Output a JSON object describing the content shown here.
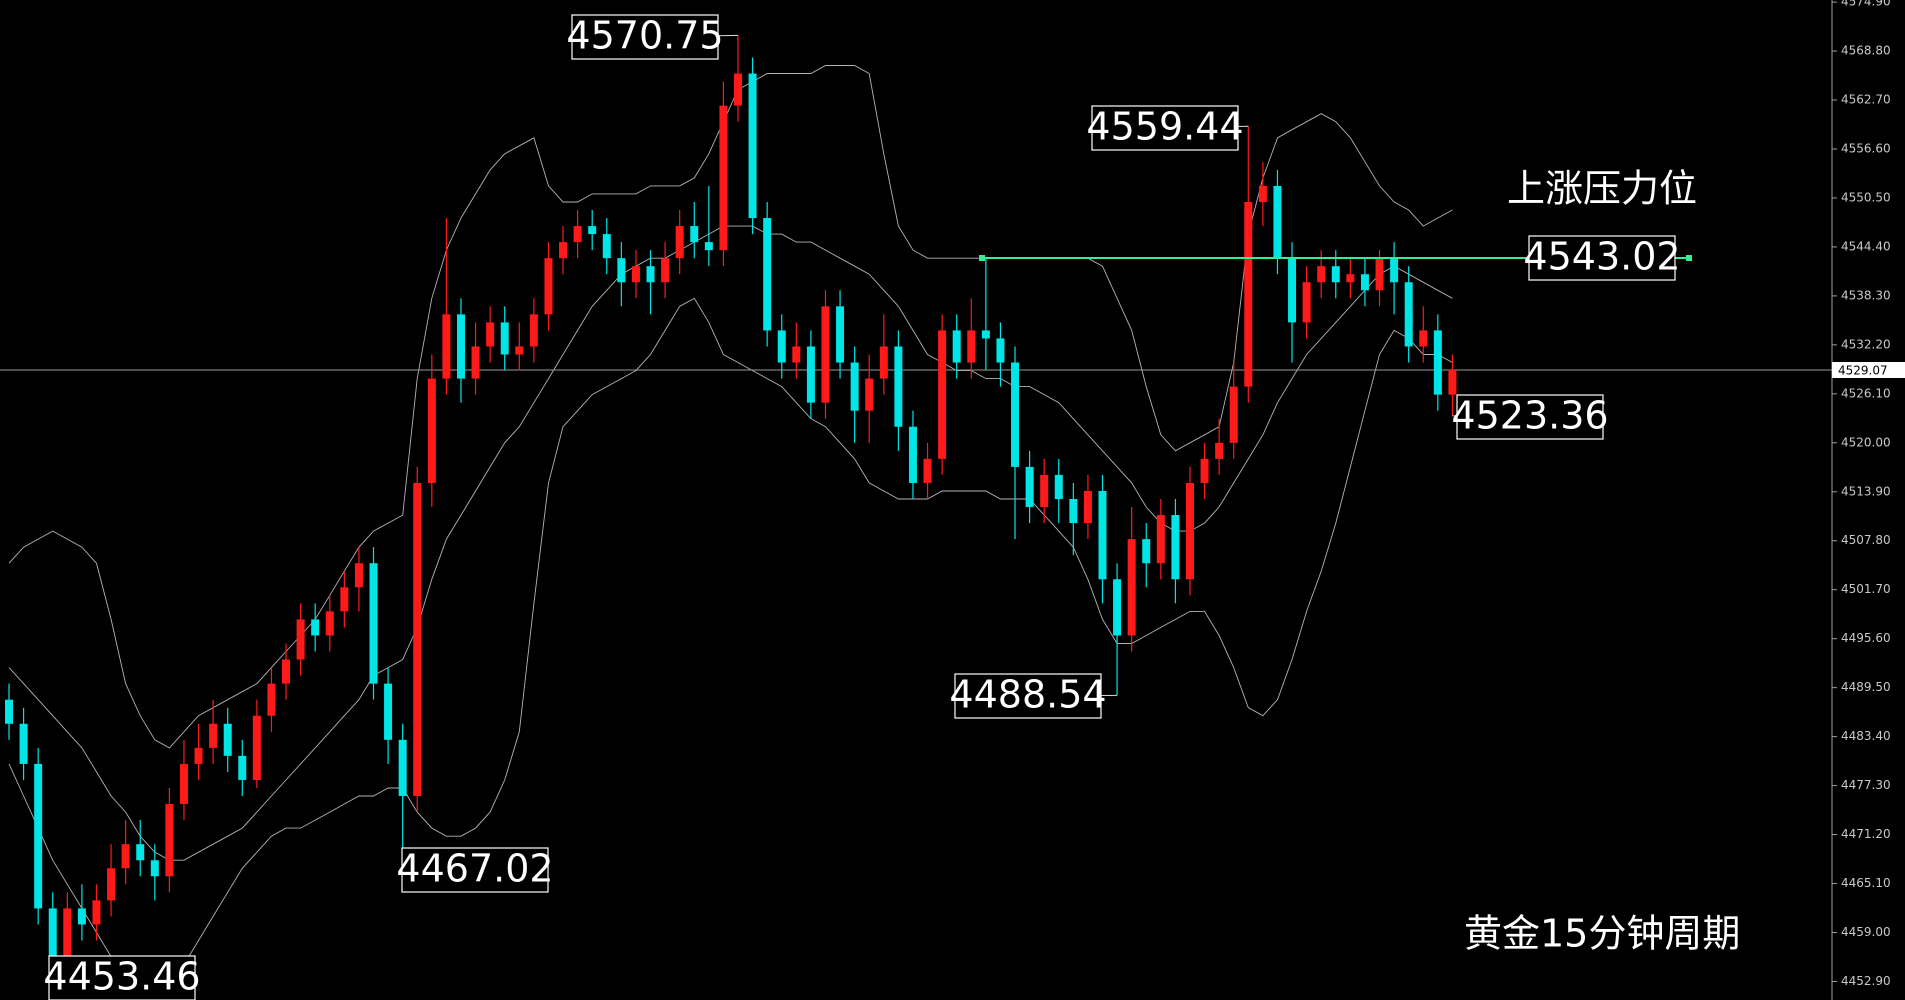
{
  "chart_data": {
    "type": "candlestick",
    "up_color": "#ff1a1a",
    "down_color": "#00e5e5",
    "ylim": [
      4450.59,
      4575.16
    ],
    "yticks": [
      {
        "value": 4574.9,
        "label": "4574.90"
      },
      {
        "value": 4568.8,
        "label": "4568.80"
      },
      {
        "value": 4562.7,
        "label": "4562.70"
      },
      {
        "value": 4556.6,
        "label": "4556.60"
      },
      {
        "value": 4550.5,
        "label": "4550.50"
      },
      {
        "value": 4544.4,
        "label": "4544.40"
      },
      {
        "value": 4538.3,
        "label": "4538.30"
      },
      {
        "value": 4532.2,
        "label": "4532.20"
      },
      {
        "value": 4526.1,
        "label": "4526.10"
      },
      {
        "value": 4520,
        "label": "4520.00"
      },
      {
        "value": 4513.9,
        "label": "4513.90"
      },
      {
        "value": 4507.8,
        "label": "4507.80"
      },
      {
        "value": 4501.7,
        "label": "4501.70"
      },
      {
        "value": 4495.6,
        "label": "4495.60"
      },
      {
        "value": 4489.5,
        "label": "4489.50"
      },
      {
        "value": 4483.4,
        "label": "4483.40"
      },
      {
        "value": 4477.3,
        "label": "4477.30"
      },
      {
        "value": 4471.2,
        "label": "4471.20"
      },
      {
        "value": 4465.1,
        "label": "4465.10"
      },
      {
        "value": 4459,
        "label": "4459.00"
      },
      {
        "value": 4452.9,
        "label": "4452.90"
      }
    ],
    "open": [
      4488,
      4485,
      4480,
      4462,
      4456,
      4462,
      4460,
      4463,
      4467,
      4470,
      4468,
      4466,
      4475,
      4480,
      4482,
      4485,
      4481,
      4478,
      4486,
      4490,
      4493,
      4498,
      4496,
      4499,
      4502,
      4505,
      4490,
      4483,
      4476,
      4515,
      4528,
      4536,
      4528,
      4532,
      4535,
      4531,
      4532,
      4536,
      4543,
      4545,
      4547,
      4546,
      4543,
      4540,
      4542,
      4540,
      4543,
      4547,
      4545,
      4544,
      4562,
      4566,
      4548,
      4534,
      4530,
      4532,
      4525,
      4537,
      4530,
      4524,
      4528,
      4532,
      4522,
      4515,
      4518,
      4534,
      4530,
      4534,
      4533,
      4530,
      4517,
      4512,
      4516,
      4513,
      4510,
      4514,
      4503,
      4496,
      4508,
      4505,
      4511,
      4503,
      4515,
      4518,
      4520,
      4527,
      4550,
      4552,
      4543,
      4535,
      4540,
      4542,
      4540,
      4541,
      4539,
      4543,
      4540,
      4532,
      4534,
      4526
    ],
    "high": [
      4490,
      4487,
      4482,
      4464,
      4464,
      4465,
      4465,
      4470,
      4473,
      4473,
      4470,
      4477,
      4483,
      4485,
      4488,
      4487,
      4483,
      4488,
      4492,
      4495,
      4500,
      4500,
      4501,
      4504,
      4507,
      4507,
      4492,
      4485,
      4517,
      4531,
      4548,
      4538,
      4535,
      4537,
      4537,
      4535,
      4538,
      4545,
      4547,
      4549,
      4549,
      4548,
      4545,
      4544,
      4544,
      4545,
      4549,
      4550,
      4552,
      4565,
      4570.75,
      4568,
      4550,
      4536,
      4535,
      4534,
      4539,
      4539,
      4532,
      4531,
      4536,
      4534,
      4524,
      4520,
      4536,
      4536,
      4538,
      4543,
      4535,
      4532,
      4519,
      4518,
      4518,
      4515,
      4516,
      4516,
      4505,
      4512,
      4510,
      4513,
      4513,
      4517,
      4520,
      4523,
      4530,
      4559.44,
      4555,
      4554,
      4545,
      4542,
      4544,
      4544,
      4543,
      4543,
      4544,
      4545,
      4542,
      4537,
      4536,
      4531
    ],
    "low": [
      4483,
      4478,
      4460,
      4453.46,
      4454,
      4458,
      4458,
      4461,
      4465,
      4466,
      4463,
      4464,
      4473,
      4478,
      4480,
      4479,
      4476,
      4477,
      4484,
      4488,
      4491,
      4494,
      4494,
      4497,
      4499,
      4488,
      4480,
      4467.02,
      4474,
      4512,
      4526,
      4525,
      4526,
      4530,
      4529,
      4529,
      4530,
      4534,
      4541,
      4543,
      4544,
      4541,
      4537,
      4538,
      4536,
      4538,
      4541,
      4543,
      4542,
      4542,
      4560,
      4546,
      4532,
      4528,
      4528,
      4523,
      4523,
      4528,
      4520,
      4520,
      4526,
      4519,
      4513,
      4513,
      4516,
      4528,
      4528,
      4529,
      4527,
      4508,
      4510,
      4510,
      4510,
      4506,
      4508,
      4500,
      4488.54,
      4494,
      4502,
      4503,
      4500,
      4501,
      4513,
      4516,
      4518,
      4525,
      4547,
      4541,
      4530,
      4533,
      4538,
      4538,
      4538,
      4537,
      4537,
      4536,
      4530,
      4530,
      4524,
      4523.36
    ],
    "close": [
      4485,
      4480,
      4462,
      4456,
      4462,
      4460,
      4463,
      4467,
      4470,
      4468,
      4466,
      4475,
      4480,
      4482,
      4485,
      4481,
      4478,
      4486,
      4490,
      4493,
      4498,
      4496,
      4499,
      4502,
      4505,
      4490,
      4483,
      4476,
      4515,
      4528,
      4536,
      4528,
      4532,
      4535,
      4531,
      4532,
      4536,
      4543,
      4545,
      4547,
      4546,
      4543,
      4540,
      4542,
      4540,
      4543,
      4547,
      4545,
      4544,
      4562,
      4566,
      4548,
      4534,
      4530,
      4532,
      4525,
      4537,
      4530,
      4524,
      4528,
      4532,
      4522,
      4515,
      4518,
      4534,
      4530,
      4534,
      4533,
      4530,
      4517,
      4512,
      4516,
      4513,
      4510,
      4514,
      4503,
      4496,
      4508,
      4505,
      4511,
      4503,
      4515,
      4518,
      4520,
      4527,
      4550,
      4552,
      4543,
      4535,
      4540,
      4542,
      4540,
      4541,
      4539,
      4543,
      4540,
      4532,
      4534,
      4526,
      4529.07
    ],
    "lines": [
      {
        "color": "#b4b4b4",
        "values": [
          4505,
          4507,
          4508,
          4509,
          4508,
          4507,
          4505,
          4498,
          4490,
          4486,
          4483,
          4482,
          4484,
          4486,
          4487,
          4488,
          4489,
          4490,
          4492,
          4494,
          4496,
          4498,
          4501,
          4504,
          4507,
          4509,
          4510,
          4511,
          4528,
          4538,
          4544,
          4548,
          4551,
          4554,
          4556,
          4557,
          4558,
          4552,
          4550,
          4550,
          4551,
          4551,
          4551,
          4551,
          4552,
          4552,
          4552,
          4553,
          4556,
          4560,
          4564,
          4565,
          4566,
          4566,
          4566,
          4566,
          4567,
          4567,
          4567,
          4566,
          4556,
          4547,
          4544,
          4543,
          4543,
          4543,
          4543,
          4543,
          4543,
          4543,
          4543,
          4543,
          4543,
          4543,
          4543,
          4542,
          4538,
          4534,
          4527,
          4521,
          4519,
          4520,
          4521,
          4522,
          4530,
          4546,
          4553,
          4558,
          4559,
          4560,
          4561,
          4560,
          4558,
          4555,
          4552,
          4550,
          4549,
          4547,
          4548,
          4549
        ]
      },
      {
        "color": "#b4b4b4",
        "values": [
          4492,
          4490,
          4488,
          4486,
          4484,
          4482,
          4479,
          4476,
          4474,
          4471,
          4469,
          4468,
          4468,
          4469,
          4470,
          4471,
          4472,
          4474,
          4476,
          4478,
          4480,
          4482,
          4484,
          4486,
          4488,
          4491,
          4492,
          4493,
          4497,
          4503,
          4508,
          4511,
          4514,
          4517,
          4520,
          4522,
          4525,
          4528,
          4531,
          4534,
          4537,
          4539,
          4541,
          4542,
          4543,
          4543,
          4544,
          4545,
          4546,
          4547,
          4547,
          4547,
          4546,
          4546,
          4545,
          4545,
          4544,
          4543,
          4542,
          4541,
          4539,
          4537,
          4534,
          4531,
          4530,
          4529,
          4529,
          4528,
          4528,
          4527,
          4527,
          4526,
          4525,
          4523,
          4521,
          4519,
          4517,
          4515,
          4512,
          4510,
          4509,
          4509,
          4510,
          4512,
          4515,
          4518,
          4521,
          4525,
          4528,
          4531,
          4533,
          4535,
          4537,
          4539,
          4541,
          4542,
          4541,
          4540,
          4539,
          4538
        ]
      },
      {
        "color": "#b4b4b4",
        "values": [
          4480,
          4476,
          4472,
          4468,
          4465,
          4462,
          4459,
          4456,
          4453,
          4451,
          4451,
          4453,
          4455,
          4458,
          4461,
          4464,
          4467,
          4469,
          4471,
          4472,
          4472,
          4473,
          4474,
          4475,
          4476,
          4476,
          4477,
          4477,
          4474,
          4472,
          4471,
          4471,
          4472,
          4474,
          4478,
          4484,
          4500,
          4515,
          4522,
          4524,
          4526,
          4527,
          4528,
          4529,
          4531,
          4534,
          4537,
          4538,
          4535,
          4531,
          4530,
          4529,
          4528,
          4527,
          4525,
          4523,
          4522,
          4520,
          4518,
          4515,
          4514,
          4513,
          4513,
          4513,
          4514,
          4514,
          4514,
          4514,
          4513,
          4513,
          4513,
          4511,
          4509,
          4507,
          4503,
          4498,
          4495,
          4495,
          4496,
          4497,
          4498,
          4499,
          4499,
          4496,
          4492,
          4487,
          4486,
          4488,
          4493,
          4499,
          4504,
          4510,
          4517,
          4524,
          4531,
          4534,
          4533,
          4531,
          4531,
          4530
        ]
      }
    ],
    "last_price": 4529.07,
    "labels": [
      4570.75,
      4559.44,
      4488.54,
      4467.02,
      4453.46,
      4523.36
    ],
    "resistance": {
      "label": "上涨压力位",
      "value": 4543.02,
      "color": "#33ee99"
    },
    "footer": "黄金15分钟周期"
  }
}
